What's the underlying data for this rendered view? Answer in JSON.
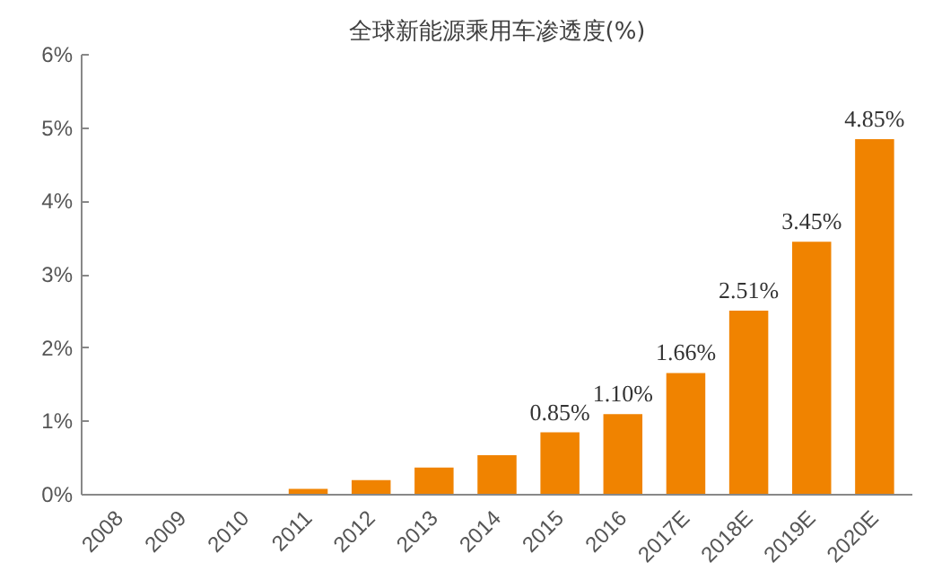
{
  "chart_data": {
    "type": "bar",
    "title": "全球新能源乘用车渗透度(%)",
    "categories": [
      "2008",
      "2009",
      "2010",
      "2011",
      "2012",
      "2013",
      "2014",
      "2015",
      "2016",
      "2017E",
      "2018E",
      "2019E",
      "2020E"
    ],
    "values": [
      0,
      0,
      0,
      0.08,
      0.2,
      0.37,
      0.54,
      0.85,
      1.1,
      1.66,
      2.51,
      3.45,
      4.85
    ],
    "value_labels": [
      null,
      null,
      null,
      null,
      null,
      null,
      null,
      "0.85%",
      "1.10%",
      "1.66%",
      "2.51%",
      "3.45%",
      "4.85%"
    ],
    "color": "#f08300",
    "ylim": [
      0,
      6
    ],
    "yticks": [
      {
        "value": 0,
        "label": "0%"
      },
      {
        "value": 1,
        "label": "1%"
      },
      {
        "value": 2,
        "label": "2%"
      },
      {
        "value": 3,
        "label": "3%"
      },
      {
        "value": 4,
        "label": "4%"
      },
      {
        "value": 5,
        "label": "5%"
      },
      {
        "value": 6,
        "label": "6%"
      }
    ],
    "grid": false
  }
}
